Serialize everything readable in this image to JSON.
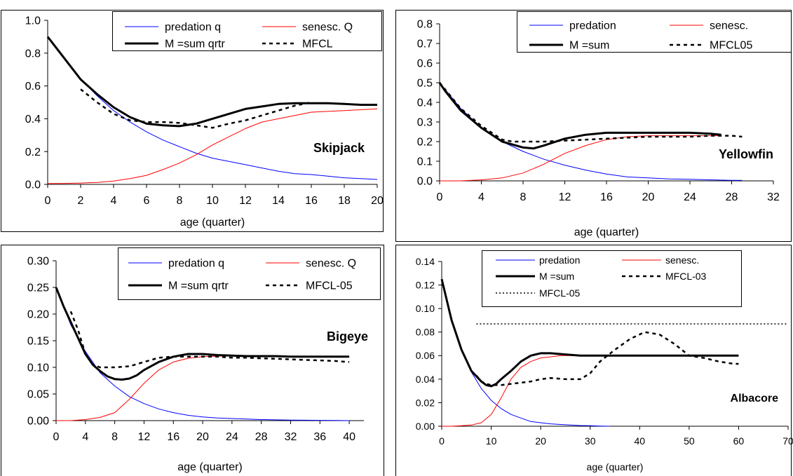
{
  "chart_data": [
    {
      "type": "line",
      "title": "",
      "annotation": "Skipjack",
      "xlabel": "age (quarter)",
      "ylabel": "",
      "xlim": [
        0,
        20
      ],
      "ylim": [
        0,
        1.0
      ],
      "xticks": [
        "0",
        "2",
        "4",
        "6",
        "8",
        "10",
        "12",
        "14",
        "16",
        "18",
        "20"
      ],
      "yticks": [
        "0.0",
        "0.2",
        "0.4",
        "0.6",
        "0.8",
        "1.0"
      ],
      "legend_placement": "top",
      "series": [
        {
          "name": "predation q",
          "color": "#0000ff",
          "style": "thin",
          "x": [
            0,
            1,
            2,
            3,
            4,
            5,
            6,
            7,
            8,
            9,
            10,
            11,
            12,
            13,
            14,
            15,
            16,
            17,
            18,
            19,
            20
          ],
          "y": [
            0.9,
            0.77,
            0.64,
            0.54,
            0.45,
            0.38,
            0.32,
            0.27,
            0.23,
            0.19,
            0.16,
            0.14,
            0.12,
            0.1,
            0.08,
            0.065,
            0.06,
            0.05,
            0.04,
            0.035,
            0.03
          ]
        },
        {
          "name": "senesc. Q",
          "color": "#ff0000",
          "style": "thin",
          "x": [
            0,
            1,
            2,
            3,
            4,
            5,
            6,
            7,
            8,
            9,
            10,
            11,
            12,
            13,
            14,
            15,
            16,
            17,
            18,
            19,
            20
          ],
          "y": [
            0.005,
            0.006,
            0.008,
            0.012,
            0.02,
            0.035,
            0.055,
            0.09,
            0.13,
            0.18,
            0.24,
            0.29,
            0.34,
            0.38,
            0.4,
            0.42,
            0.44,
            0.445,
            0.45,
            0.455,
            0.46
          ]
        },
        {
          "name": "M =sum qrtr",
          "color": "#000000",
          "style": "thick",
          "x": [
            0,
            1,
            2,
            3,
            4,
            5,
            6,
            7,
            8,
            9,
            10,
            11,
            12,
            13,
            14,
            15,
            16,
            17,
            18,
            19,
            20
          ],
          "y": [
            0.9,
            0.77,
            0.64,
            0.55,
            0.47,
            0.41,
            0.37,
            0.36,
            0.355,
            0.37,
            0.4,
            0.43,
            0.46,
            0.475,
            0.49,
            0.495,
            0.495,
            0.495,
            0.49,
            0.485,
            0.485
          ]
        },
        {
          "name": "MFCL",
          "color": "#000000",
          "style": "dashed",
          "x": [
            2,
            3,
            4,
            5,
            6,
            7,
            8,
            9,
            10,
            11,
            12,
            13,
            14,
            15,
            16
          ],
          "y": [
            0.58,
            0.5,
            0.43,
            0.39,
            0.38,
            0.38,
            0.375,
            0.36,
            0.345,
            0.37,
            0.39,
            0.42,
            0.45,
            0.48,
            0.5
          ]
        }
      ]
    },
    {
      "type": "line",
      "title": "",
      "annotation": "Yellowfin",
      "xlabel": "age (quarter)",
      "ylabel": "",
      "xlim": [
        0,
        32
      ],
      "ylim": [
        0,
        0.8
      ],
      "xticks": [
        "0",
        "4",
        "8",
        "12",
        "16",
        "20",
        "24",
        "28",
        "32"
      ],
      "yticks": [
        "0.0",
        "0.1",
        "0.2",
        "0.3",
        "0.4",
        "0.5",
        "0.6",
        "0.7",
        "0.8"
      ],
      "legend_placement": "top-right",
      "series": [
        {
          "name": "predation",
          "color": "#0000ff",
          "style": "thin",
          "x": [
            0,
            2,
            4,
            6,
            8,
            10,
            12,
            14,
            16,
            18,
            20,
            22,
            24,
            26,
            28,
            29
          ],
          "y": [
            0.5,
            0.37,
            0.27,
            0.2,
            0.15,
            0.11,
            0.08,
            0.055,
            0.035,
            0.02,
            0.015,
            0.01,
            0.008,
            0.005,
            0.003,
            0.003
          ]
        },
        {
          "name": "senesc.",
          "color": "#ff0000",
          "style": "thin",
          "x": [
            0,
            2,
            4,
            6,
            8,
            10,
            12,
            14,
            16,
            18,
            20,
            22,
            24,
            26,
            27
          ],
          "y": [
            0.0,
            0.0,
            0.005,
            0.015,
            0.04,
            0.085,
            0.14,
            0.18,
            0.21,
            0.225,
            0.23,
            0.23,
            0.23,
            0.23,
            0.23
          ]
        },
        {
          "name": "M =sum",
          "color": "#000000",
          "style": "thick",
          "x": [
            0,
            0.5,
            2,
            4,
            6,
            8,
            9,
            10,
            12,
            14,
            16,
            18,
            20,
            22,
            24,
            26,
            27
          ],
          "y": [
            0.5,
            0.46,
            0.36,
            0.27,
            0.2,
            0.17,
            0.165,
            0.18,
            0.215,
            0.235,
            0.245,
            0.245,
            0.245,
            0.245,
            0.245,
            0.24,
            0.235
          ]
        },
        {
          "name": "MFCL05",
          "color": "#000000",
          "style": "dashed",
          "x": [
            0,
            2,
            4,
            6,
            7,
            8,
            10,
            12,
            14,
            16,
            18,
            20,
            22,
            24,
            26,
            28,
            29
          ],
          "y": [
            0.5,
            0.37,
            0.28,
            0.21,
            0.2,
            0.2,
            0.2,
            0.205,
            0.21,
            0.215,
            0.22,
            0.225,
            0.225,
            0.225,
            0.23,
            0.23,
            0.225
          ]
        }
      ]
    },
    {
      "type": "line",
      "title": "",
      "annotation": "Bigeye",
      "xlabel": "age (quarter)",
      "ylabel": "",
      "xlim": [
        0,
        42
      ],
      "ylim": [
        0,
        0.3
      ],
      "xticks": [
        "0",
        "4",
        "8",
        "12",
        "16",
        "20",
        "24",
        "28",
        "32",
        "36",
        "40"
      ],
      "yticks": [
        "0.00",
        "0.05",
        "0.10",
        "0.15",
        "0.20",
        "0.25",
        "0.30"
      ],
      "legend_placement": "top-right",
      "series": [
        {
          "name": "predation q",
          "color": "#0000ff",
          "style": "thin",
          "x": [
            0,
            2,
            4,
            6,
            8,
            10,
            12,
            14,
            16,
            18,
            20,
            22,
            24,
            26,
            28,
            30,
            32,
            34,
            36,
            38,
            40
          ],
          "y": [
            0.25,
            0.18,
            0.13,
            0.09,
            0.065,
            0.045,
            0.032,
            0.022,
            0.015,
            0.01,
            0.007,
            0.005,
            0.004,
            0.003,
            0.002,
            0.0015,
            0.001,
            0.0008,
            0.0005,
            0.0003,
            0.0
          ]
        },
        {
          "name": "senesc. Q",
          "color": "#ff0000",
          "style": "thin",
          "x": [
            0,
            2,
            4,
            6,
            8,
            10,
            12,
            14,
            16,
            18,
            20,
            22,
            24,
            26,
            28,
            30,
            32
          ],
          "y": [
            0.0,
            0.0,
            0.002,
            0.006,
            0.015,
            0.04,
            0.07,
            0.095,
            0.11,
            0.117,
            0.12,
            0.121,
            0.121,
            0.121,
            0.121,
            0.121,
            0.121
          ]
        },
        {
          "name": "M =sum qrtr",
          "color": "#000000",
          "style": "thick",
          "x": [
            0,
            1,
            2,
            3,
            4,
            5,
            6,
            7,
            8,
            9,
            10,
            11,
            12,
            14,
            16,
            18,
            20,
            22,
            24,
            26,
            28,
            30,
            32,
            34,
            36,
            38,
            40
          ],
          "y": [
            0.25,
            0.215,
            0.185,
            0.155,
            0.125,
            0.105,
            0.093,
            0.083,
            0.078,
            0.077,
            0.079,
            0.085,
            0.095,
            0.11,
            0.12,
            0.125,
            0.125,
            0.123,
            0.122,
            0.121,
            0.121,
            0.121,
            0.12,
            0.12,
            0.12,
            0.12,
            0.12
          ]
        },
        {
          "name": "MFCL-05",
          "color": "#000000",
          "style": "dashed",
          "x": [
            2,
            3,
            4,
            5,
            6,
            8,
            10,
            12,
            14,
            16,
            18,
            20,
            22,
            24,
            26,
            28,
            30,
            32,
            34,
            36,
            38,
            40
          ],
          "y": [
            0.205,
            0.17,
            0.125,
            0.105,
            0.1,
            0.1,
            0.102,
            0.11,
            0.118,
            0.12,
            0.12,
            0.12,
            0.12,
            0.118,
            0.118,
            0.117,
            0.116,
            0.115,
            0.114,
            0.113,
            0.112,
            0.11
          ]
        }
      ]
    },
    {
      "type": "line",
      "title": "",
      "annotation": "Albacore",
      "xlabel": "age (quarter)",
      "ylabel": "",
      "xlim": [
        0,
        70
      ],
      "ylim": [
        0,
        0.14
      ],
      "xticks": [
        "0",
        "10",
        "20",
        "30",
        "40",
        "50",
        "60",
        "70"
      ],
      "yticks": [
        "0.00",
        "0.02",
        "0.04",
        "0.06",
        "0.08",
        "0.10",
        "0.12",
        "0.14"
      ],
      "legend_placement": "top",
      "series": [
        {
          "name": "predation",
          "color": "#0000ff",
          "style": "thin",
          "x": [
            0,
            2,
            4,
            6,
            8,
            10,
            12,
            14,
            16,
            18,
            20,
            22,
            24,
            26,
            28,
            30,
            32,
            34
          ],
          "y": [
            0.125,
            0.09,
            0.065,
            0.046,
            0.032,
            0.022,
            0.015,
            0.01,
            0.007,
            0.004,
            0.003,
            0.002,
            0.0015,
            0.001,
            0.0006,
            0.0004,
            0.0002,
            0.0
          ]
        },
        {
          "name": "senesc.",
          "color": "#ff0000",
          "style": "thin",
          "x": [
            0,
            2,
            4,
            6,
            8,
            10,
            12,
            14,
            16,
            18,
            20,
            22,
            24,
            26,
            28,
            30,
            35,
            40,
            50,
            60
          ],
          "y": [
            0.0,
            0.0,
            0.0005,
            0.001,
            0.003,
            0.01,
            0.024,
            0.04,
            0.05,
            0.055,
            0.058,
            0.059,
            0.06,
            0.06,
            0.06,
            0.06,
            0.06,
            0.06,
            0.06,
            0.06
          ]
        },
        {
          "name": "M =sum",
          "color": "#000000",
          "style": "thick",
          "x": [
            0,
            2,
            4,
            6,
            8,
            9,
            10,
            11,
            12,
            14,
            16,
            18,
            20,
            22,
            25,
            28,
            30,
            35,
            40,
            50,
            60
          ],
          "y": [
            0.125,
            0.09,
            0.065,
            0.047,
            0.038,
            0.035,
            0.034,
            0.036,
            0.04,
            0.047,
            0.055,
            0.06,
            0.062,
            0.062,
            0.061,
            0.06,
            0.06,
            0.06,
            0.06,
            0.06,
            0.06
          ]
        },
        {
          "name": "MFCL-03",
          "color": "#000000",
          "style": "dashed",
          "x": [
            7,
            8,
            9,
            10,
            12,
            14,
            16,
            18,
            20,
            22,
            25,
            28,
            30,
            32,
            35,
            38,
            41,
            44,
            47,
            50,
            53,
            56,
            59,
            60
          ],
          "y": [
            0.043,
            0.038,
            0.036,
            0.035,
            0.035,
            0.036,
            0.037,
            0.038,
            0.04,
            0.041,
            0.04,
            0.04,
            0.045,
            0.055,
            0.065,
            0.074,
            0.08,
            0.078,
            0.07,
            0.06,
            0.058,
            0.055,
            0.053,
            0.053
          ]
        },
        {
          "name": "MFCL-05",
          "color": "#000000",
          "style": "dotted",
          "x": [
            7,
            70
          ],
          "y": [
            0.087,
            0.087
          ]
        }
      ]
    }
  ]
}
